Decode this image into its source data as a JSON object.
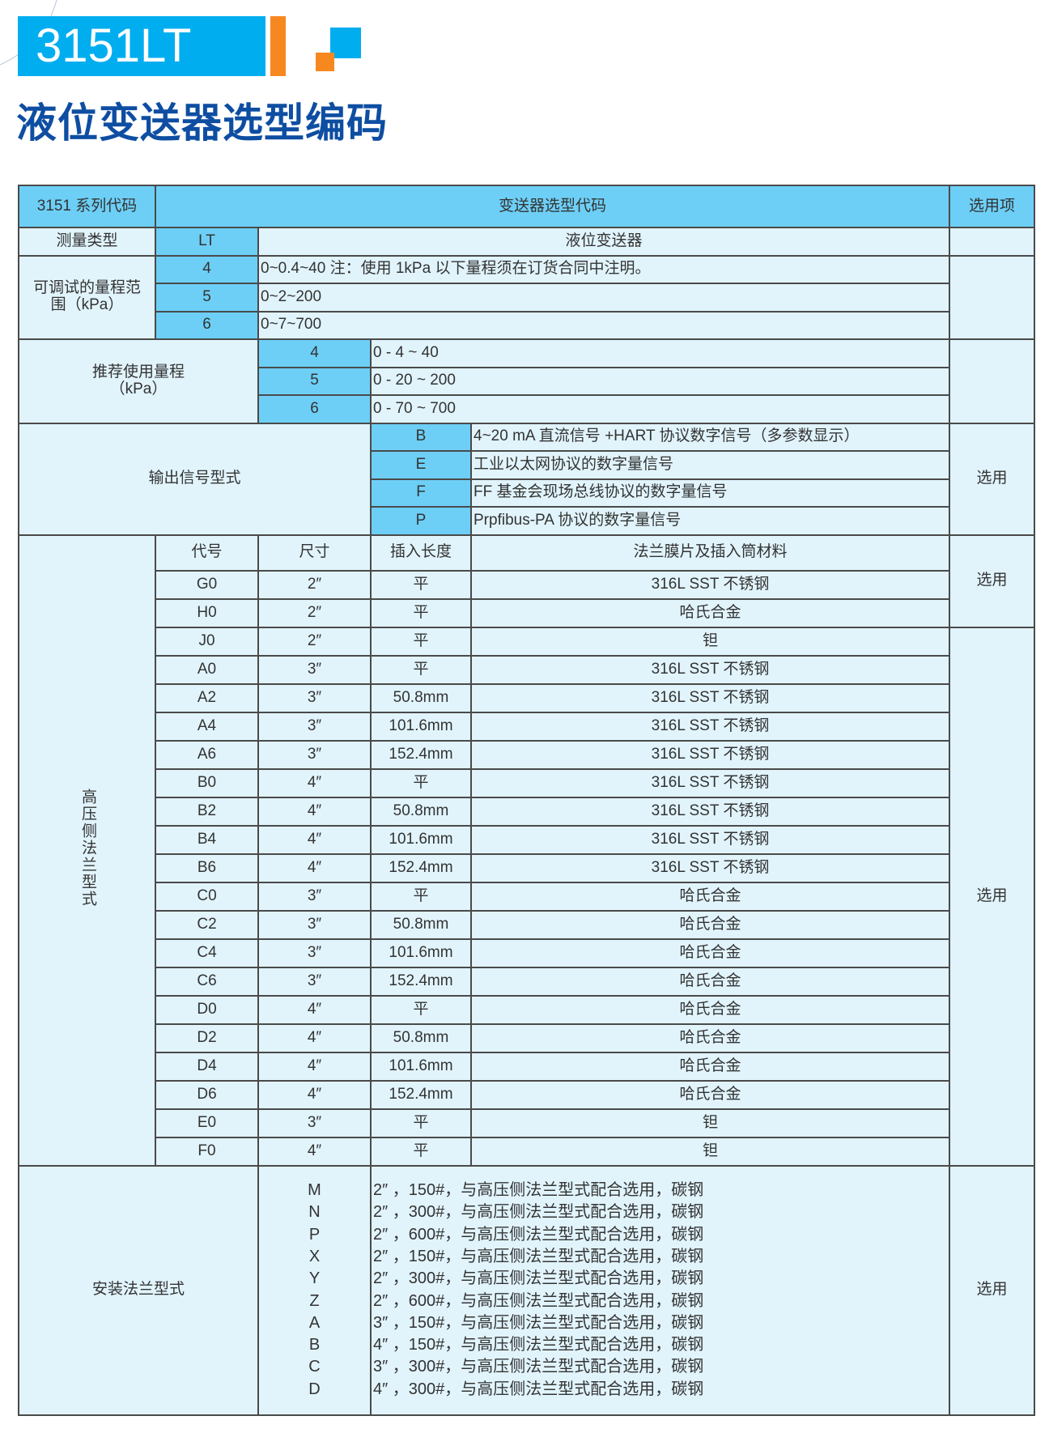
{
  "header": {
    "model": "3151LT",
    "subtitle": "液位变送器选型编码"
  },
  "colors": {
    "brand_blue": "#00aeef",
    "accent_orange": "#f7881f",
    "title_blue": "#0e4ea2",
    "cell_highlight": "#6dcff6",
    "cell_light": "#e1f4fc"
  },
  "table": {
    "head": {
      "series": "3151 系列代码",
      "code": "变送器选型代码",
      "option": "选用项"
    },
    "measure": {
      "label": "测量类型",
      "code": "LT",
      "desc": "液位变送器"
    },
    "range": {
      "label": "可调试的量程范围（kPa）",
      "rows": [
        {
          "code": "4",
          "desc": "0~0.4~40 注：使用 1kPa 以下量程须在订货合同中注明。"
        },
        {
          "code": "5",
          "desc": "0~2~200"
        },
        {
          "code": "6",
          "desc": "0~7~700"
        }
      ]
    },
    "recommended": {
      "label": "推荐使用量程（kPa）",
      "rows": [
        {
          "code": "4",
          "desc": "0 - 4 ~ 40"
        },
        {
          "code": "5",
          "desc": "0 - 20 ~ 200"
        },
        {
          "code": "6",
          "desc": "0 - 70 ~ 700"
        }
      ]
    },
    "output": {
      "label": "输出信号型式",
      "option": "选用",
      "rows": [
        {
          "code": "B",
          "desc": "4~20 mA 直流信号 +HART 协议数字信号（多参数显示）"
        },
        {
          "code": "E",
          "desc": "工业以太网协议的数字量信号"
        },
        {
          "code": "F",
          "desc": "FF 基金会现场总线协议的数字量信号"
        },
        {
          "code": "P",
          "desc": "Prpfibus-PA 协议的数字量信号"
        }
      ]
    },
    "flange": {
      "label": "高压侧法兰型式",
      "columns": [
        "代号",
        "尺寸",
        "插入长度",
        "法兰膜片及插入筒材料"
      ],
      "option1": "选用",
      "option2": "选用",
      "rows": [
        [
          "G0",
          "2″",
          "平",
          "316L SST 不锈钢"
        ],
        [
          "H0",
          "2″",
          "平",
          "哈氏合金"
        ],
        [
          "J0",
          "2″",
          "平",
          "钽"
        ],
        [
          "A0",
          "3″",
          "平",
          "316L SST 不锈钢"
        ],
        [
          "A2",
          "3″",
          "50.8mm",
          "316L SST 不锈钢"
        ],
        [
          "A4",
          "3″",
          "101.6mm",
          "316L SST 不锈钢"
        ],
        [
          "A6",
          "3″",
          "152.4mm",
          "316L SST 不锈钢"
        ],
        [
          "B0",
          "4″",
          "平",
          "316L SST 不锈钢"
        ],
        [
          "B2",
          "4″",
          "50.8mm",
          "316L SST 不锈钢"
        ],
        [
          "B4",
          "4″",
          "101.6mm",
          "316L SST 不锈钢"
        ],
        [
          "B6",
          "4″",
          "152.4mm",
          "316L SST 不锈钢"
        ],
        [
          "C0",
          "3″",
          "平",
          "哈氏合金"
        ],
        [
          "C2",
          "3″",
          "50.8mm",
          "哈氏合金"
        ],
        [
          "C4",
          "3″",
          "101.6mm",
          "哈氏合金"
        ],
        [
          "C6",
          "3″",
          "152.4mm",
          "哈氏合金"
        ],
        [
          "D0",
          "4″",
          "平",
          "哈氏合金"
        ],
        [
          "D2",
          "4″",
          "50.8mm",
          "哈氏合金"
        ],
        [
          "D4",
          "4″",
          "101.6mm",
          "哈氏合金"
        ],
        [
          "D6",
          "4″",
          "152.4mm",
          "哈氏合金"
        ],
        [
          "E0",
          "3″",
          "平",
          "钽"
        ],
        [
          "F0",
          "4″",
          "平",
          "钽"
        ]
      ]
    },
    "mount": {
      "label": "安装法兰型式",
      "option": "选用",
      "rows": [
        {
          "code": "M",
          "desc": "2″ ，150#，与高压侧法兰型式配合选用，碳钢"
        },
        {
          "code": "N",
          "desc": "2″ ，300#，与高压侧法兰型式配合选用，碳钢"
        },
        {
          "code": "P",
          "desc": "2″ ，600#，与高压侧法兰型式配合选用，碳钢"
        },
        {
          "code": "X",
          "desc": "2″ ，150#，与高压侧法兰型式配合选用，碳钢"
        },
        {
          "code": "Y",
          "desc": "2″ ，300#，与高压侧法兰型式配合选用，碳钢"
        },
        {
          "code": "Z",
          "desc": "2″ ，600#，与高压侧法兰型式配合选用，碳钢"
        },
        {
          "code": "A",
          "desc": "3″ ，150#，与高压侧法兰型式配合选用，碳钢"
        },
        {
          "code": "B",
          "desc": "4″ ，150#，与高压侧法兰型式配合选用，碳钢"
        },
        {
          "code": "C",
          "desc": "3″ ，300#，与高压侧法兰型式配合选用，碳钢"
        },
        {
          "code": "D",
          "desc": "4″ ，300#，与高压侧法兰型式配合选用，碳钢"
        }
      ]
    }
  }
}
